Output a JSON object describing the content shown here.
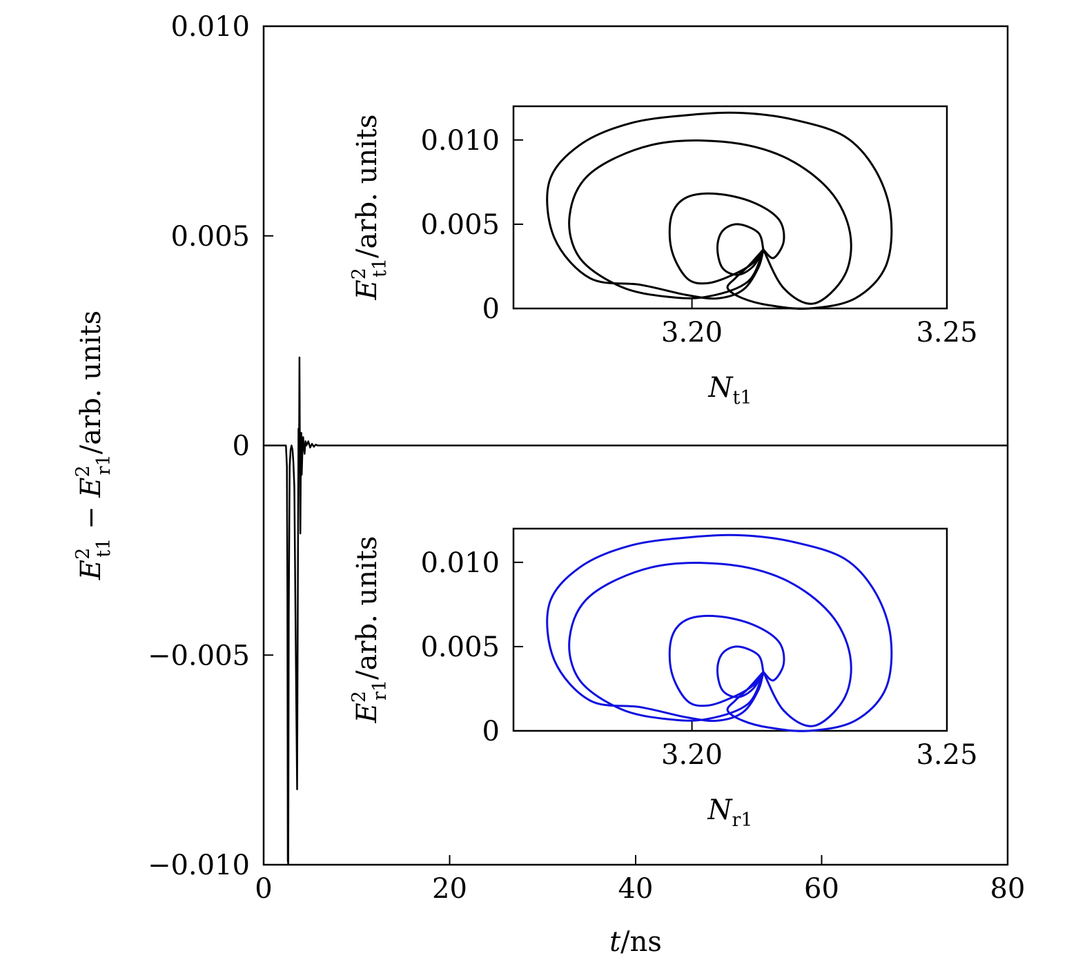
{
  "chart_data": [
    {
      "type": "line",
      "xlabel": "t/ns",
      "ylabel": "E²t1 − E²r1/arb. units",
      "xlim": [
        0,
        80
      ],
      "ylim": [
        -0.01,
        0.01
      ],
      "x_ticks": [
        0,
        20,
        40,
        60,
        80
      ],
      "x_tick_labels": [
        "0",
        "20",
        "40",
        "60",
        "80"
      ],
      "y_ticks": [
        0.01,
        0.005,
        0,
        -0.005,
        -0.01
      ],
      "y_tick_labels": [
        "0.010",
        "0.005",
        "0",
        "−0.005",
        "−0.010"
      ],
      "series": [
        {
          "color": "#000000",
          "x": [
            0,
            1.0,
            2.0,
            2.4,
            2.5,
            2.55,
            2.6,
            2.65,
            2.7,
            2.8,
            2.9,
            3.0,
            3.1,
            3.2,
            3.3,
            3.5,
            3.6,
            3.7,
            3.75,
            3.8,
            3.85,
            3.9,
            3.95,
            4.0,
            4.05,
            4.1,
            4.15,
            4.2,
            4.25,
            4.3,
            4.4,
            4.5,
            4.6,
            4.8,
            5.0,
            5.2,
            5.4,
            5.6,
            5.8,
            6.0,
            6.5,
            10,
            20,
            40,
            60,
            80
          ],
          "y": [
            0,
            0,
            0,
            0,
            -0.0005,
            -0.0035,
            -0.0099,
            -0.01,
            -0.004,
            -0.0005,
            -0.0001,
            0.0,
            -0.0001,
            -0.0004,
            -0.001,
            -0.006,
            -0.0082,
            -0.002,
            0.0004,
            -0.0005,
            0.0021,
            -0.0003,
            -0.0021,
            -0.0004,
            0.0003,
            -0.0007,
            -0.0003,
            0.0001,
            0.0002,
            0.0,
            -0.0002,
            0.0001,
            0.0,
            0.0001,
            -5e-05,
            4e-05,
            -3e-05,
            2e-05,
            0,
            0,
            0,
            0,
            0,
            0,
            0,
            0
          ]
        }
      ]
    },
    {
      "type": "line",
      "xlabel": "Nt1",
      "ylabel": "E²t1/arb. units",
      "xlim": [
        3.165,
        3.25
      ],
      "ylim": [
        0,
        0.012
      ],
      "x_ticks": [
        3.2,
        3.25
      ],
      "x_tick_labels": [
        "3.20",
        "3.25"
      ],
      "y_ticks": [
        0,
        0.005,
        0.01
      ],
      "y_tick_labels": [
        "0",
        "0.005",
        "0.010"
      ],
      "series": [
        {
          "color": "#000000",
          "x": [
            3.214,
            3.211,
            3.2085,
            3.207,
            3.21,
            3.215,
            3.223,
            3.232,
            3.238,
            3.239,
            3.236,
            3.23,
            3.22,
            3.21,
            3.2,
            3.188,
            3.178,
            3.172,
            3.173,
            3.18,
            3.19,
            3.199,
            3.205,
            3.21,
            3.213,
            3.214
          ],
          "y": [
            0.0035,
            0.0025,
            0.0018,
            0.0012,
            0.0006,
            0.0002,
            0.0,
            0.0006,
            0.0025,
            0.0055,
            0.0082,
            0.0102,
            0.0112,
            0.0116,
            0.0115,
            0.011,
            0.0097,
            0.0075,
            0.0042,
            0.0018,
            0.0014,
            0.0008,
            0.0006,
            0.0011,
            0.0024,
            0.0035
          ]
        },
        {
          "color": "#000000",
          "x": [
            3.214,
            3.218,
            3.224,
            3.23,
            3.231,
            3.227,
            3.218,
            3.206,
            3.192,
            3.18,
            3.176,
            3.178,
            3.186,
            3.195,
            3.203,
            3.211,
            3.214
          ],
          "y": [
            0.0035,
            0.0012,
            0.0003,
            0.002,
            0.0045,
            0.007,
            0.009,
            0.0099,
            0.0097,
            0.008,
            0.0055,
            0.003,
            0.0013,
            0.0007,
            0.0007,
            0.0016,
            0.0035
          ]
        },
        {
          "color": "#000000",
          "x": [
            3.214,
            3.216,
            3.218,
            3.217,
            3.212,
            3.205,
            3.199,
            3.196,
            3.196,
            3.199,
            3.203,
            3.208,
            3.212,
            3.214
          ],
          "y": [
            0.0035,
            0.003,
            0.004,
            0.0053,
            0.0063,
            0.0068,
            0.0066,
            0.0055,
            0.0035,
            0.0018,
            0.0015,
            0.002,
            0.0027,
            0.0035
          ]
        },
        {
          "color": "#000000",
          "x": [
            3.214,
            3.213,
            3.209,
            3.206,
            3.205,
            3.206,
            3.209,
            3.212,
            3.214
          ],
          "y": [
            0.0035,
            0.0045,
            0.005,
            0.0046,
            0.0036,
            0.0024,
            0.002,
            0.0025,
            0.0035
          ]
        }
      ]
    },
    {
      "type": "line",
      "xlabel": "Nr1",
      "ylabel": "E²r1/arb. units",
      "xlim": [
        3.165,
        3.25
      ],
      "ylim": [
        0,
        0.012
      ],
      "x_ticks": [
        3.2,
        3.25
      ],
      "x_tick_labels": [
        "3.20",
        "3.25"
      ],
      "y_ticks": [
        0,
        0.005,
        0.01
      ],
      "y_tick_labels": [
        "0",
        "0.005",
        "0.010"
      ],
      "series": [
        {
          "color": "#1010e0",
          "x": [
            3.214,
            3.211,
            3.2085,
            3.207,
            3.21,
            3.215,
            3.223,
            3.232,
            3.238,
            3.239,
            3.236,
            3.23,
            3.22,
            3.21,
            3.2,
            3.188,
            3.178,
            3.172,
            3.173,
            3.18,
            3.19,
            3.199,
            3.205,
            3.21,
            3.213,
            3.214
          ],
          "y": [
            0.0035,
            0.0025,
            0.0018,
            0.0012,
            0.0006,
            0.0002,
            0.0,
            0.0006,
            0.0025,
            0.0055,
            0.0082,
            0.0102,
            0.0112,
            0.0116,
            0.0115,
            0.011,
            0.0097,
            0.0075,
            0.0042,
            0.0018,
            0.0014,
            0.0008,
            0.0006,
            0.0011,
            0.0024,
            0.0035
          ]
        },
        {
          "color": "#1010e0",
          "x": [
            3.214,
            3.218,
            3.224,
            3.23,
            3.231,
            3.227,
            3.218,
            3.206,
            3.192,
            3.18,
            3.176,
            3.178,
            3.186,
            3.195,
            3.203,
            3.211,
            3.214
          ],
          "y": [
            0.0035,
            0.0012,
            0.0003,
            0.002,
            0.0045,
            0.007,
            0.009,
            0.0099,
            0.0097,
            0.008,
            0.0055,
            0.003,
            0.0013,
            0.0007,
            0.0007,
            0.0016,
            0.0035
          ]
        },
        {
          "color": "#1010e0",
          "x": [
            3.214,
            3.216,
            3.218,
            3.217,
            3.212,
            3.205,
            3.199,
            3.196,
            3.196,
            3.199,
            3.203,
            3.208,
            3.212,
            3.214
          ],
          "y": [
            0.0035,
            0.003,
            0.004,
            0.0053,
            0.0063,
            0.0068,
            0.0066,
            0.0055,
            0.0035,
            0.0018,
            0.0015,
            0.002,
            0.0027,
            0.0035
          ]
        },
        {
          "color": "#1010e0",
          "x": [
            3.214,
            3.213,
            3.209,
            3.206,
            3.205,
            3.206,
            3.209,
            3.212,
            3.214
          ],
          "y": [
            0.0035,
            0.0045,
            0.005,
            0.0046,
            0.0036,
            0.0024,
            0.002,
            0.0025,
            0.0035
          ]
        }
      ]
    }
  ]
}
